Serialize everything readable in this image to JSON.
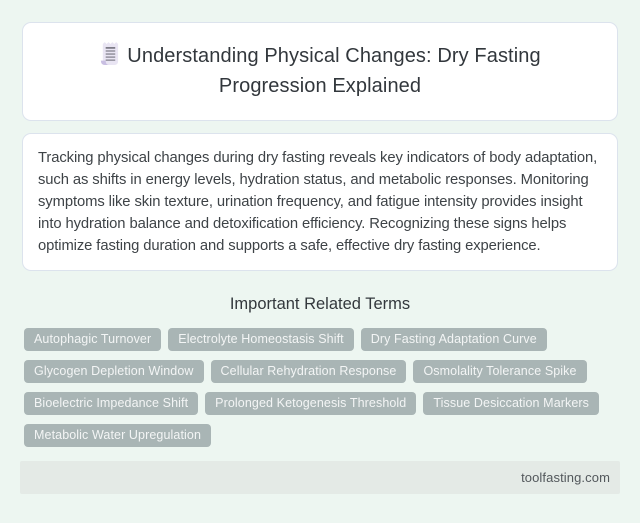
{
  "header": {
    "icon": "receipt-icon",
    "title": "Understanding Physical Changes: Dry Fasting Progression Explained"
  },
  "summary": {
    "text": "Tracking physical changes during dry fasting reveals key indicators of body adaptation, such as shifts in energy levels, hydration status, and metabolic responses. Monitoring symptoms like skin texture, urination frequency, and fatigue intensity provides insight into hydration balance and detoxification efficiency. Recognizing these signs helps optimize fasting duration and supports a safe, effective dry fasting experience."
  },
  "related_terms": {
    "heading": "Important Related Terms",
    "terms": [
      "Autophagic Turnover",
      "Electrolyte Homeostasis Shift",
      "Dry Fasting Adaptation Curve",
      "Glycogen Depletion Window",
      "Cellular Rehydration Response",
      "Osmolality Tolerance Spike",
      "Bioelectric Impedance Shift",
      "Prolonged Ketogenesis Threshold",
      "Tissue Desiccation Markers",
      "Metabolic Water Upregulation"
    ]
  },
  "footer": {
    "site": "toolfasting.com"
  },
  "colors": {
    "page_bg": "#edf6f1",
    "card_border": "#dce3ed",
    "chip_bg": "#a9b5b5",
    "chip_text": "#f3f5f5",
    "footer_bg": "#e4eae6",
    "title_text": "#32373c"
  }
}
